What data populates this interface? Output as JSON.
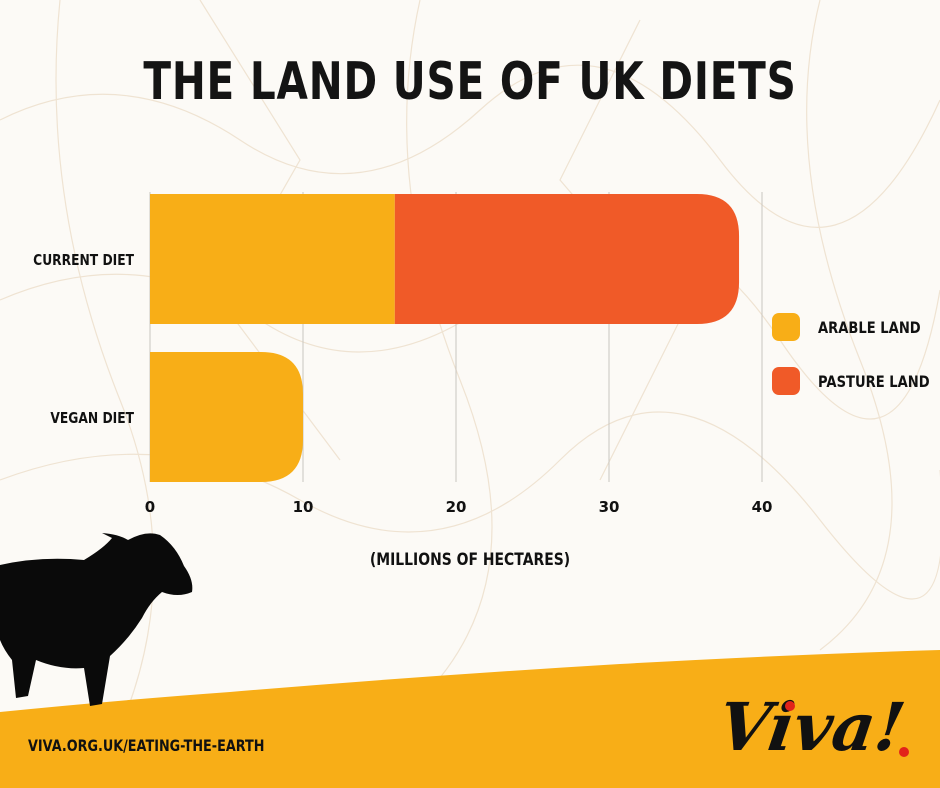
{
  "title": "THE LAND USE OF UK DIETS",
  "legend": {
    "items": [
      {
        "label": "ARABLE LAND",
        "color": "#f8ae17"
      },
      {
        "label": "PASTURE LAND",
        "color": "#f05a28"
      }
    ]
  },
  "axis_title": "(MILLIONS OF HECTARES)",
  "footer": {
    "url": "VIVA.ORG.UK/EATING-THE-EARTH"
  },
  "logo": {
    "text": "Viva!"
  },
  "colors": {
    "arable": "#f8ae17",
    "pasture": "#f05a28",
    "band": "#f8ae17",
    "ink": "#111111"
  },
  "chart_data": {
    "type": "bar",
    "orientation": "horizontal",
    "stacked": true,
    "categories": [
      "CURRENT DIET",
      "VEGAN DIET"
    ],
    "series": [
      {
        "name": "ARABLE LAND",
        "values": [
          16,
          10
        ]
      },
      {
        "name": "PASTURE LAND",
        "values": [
          22.5,
          0
        ]
      }
    ],
    "xlim": [
      0,
      40
    ],
    "xticks": [
      0,
      10,
      20,
      30,
      40
    ],
    "xlabel": "(MILLIONS OF HECTARES)",
    "grid": true,
    "legend_position": "right"
  }
}
